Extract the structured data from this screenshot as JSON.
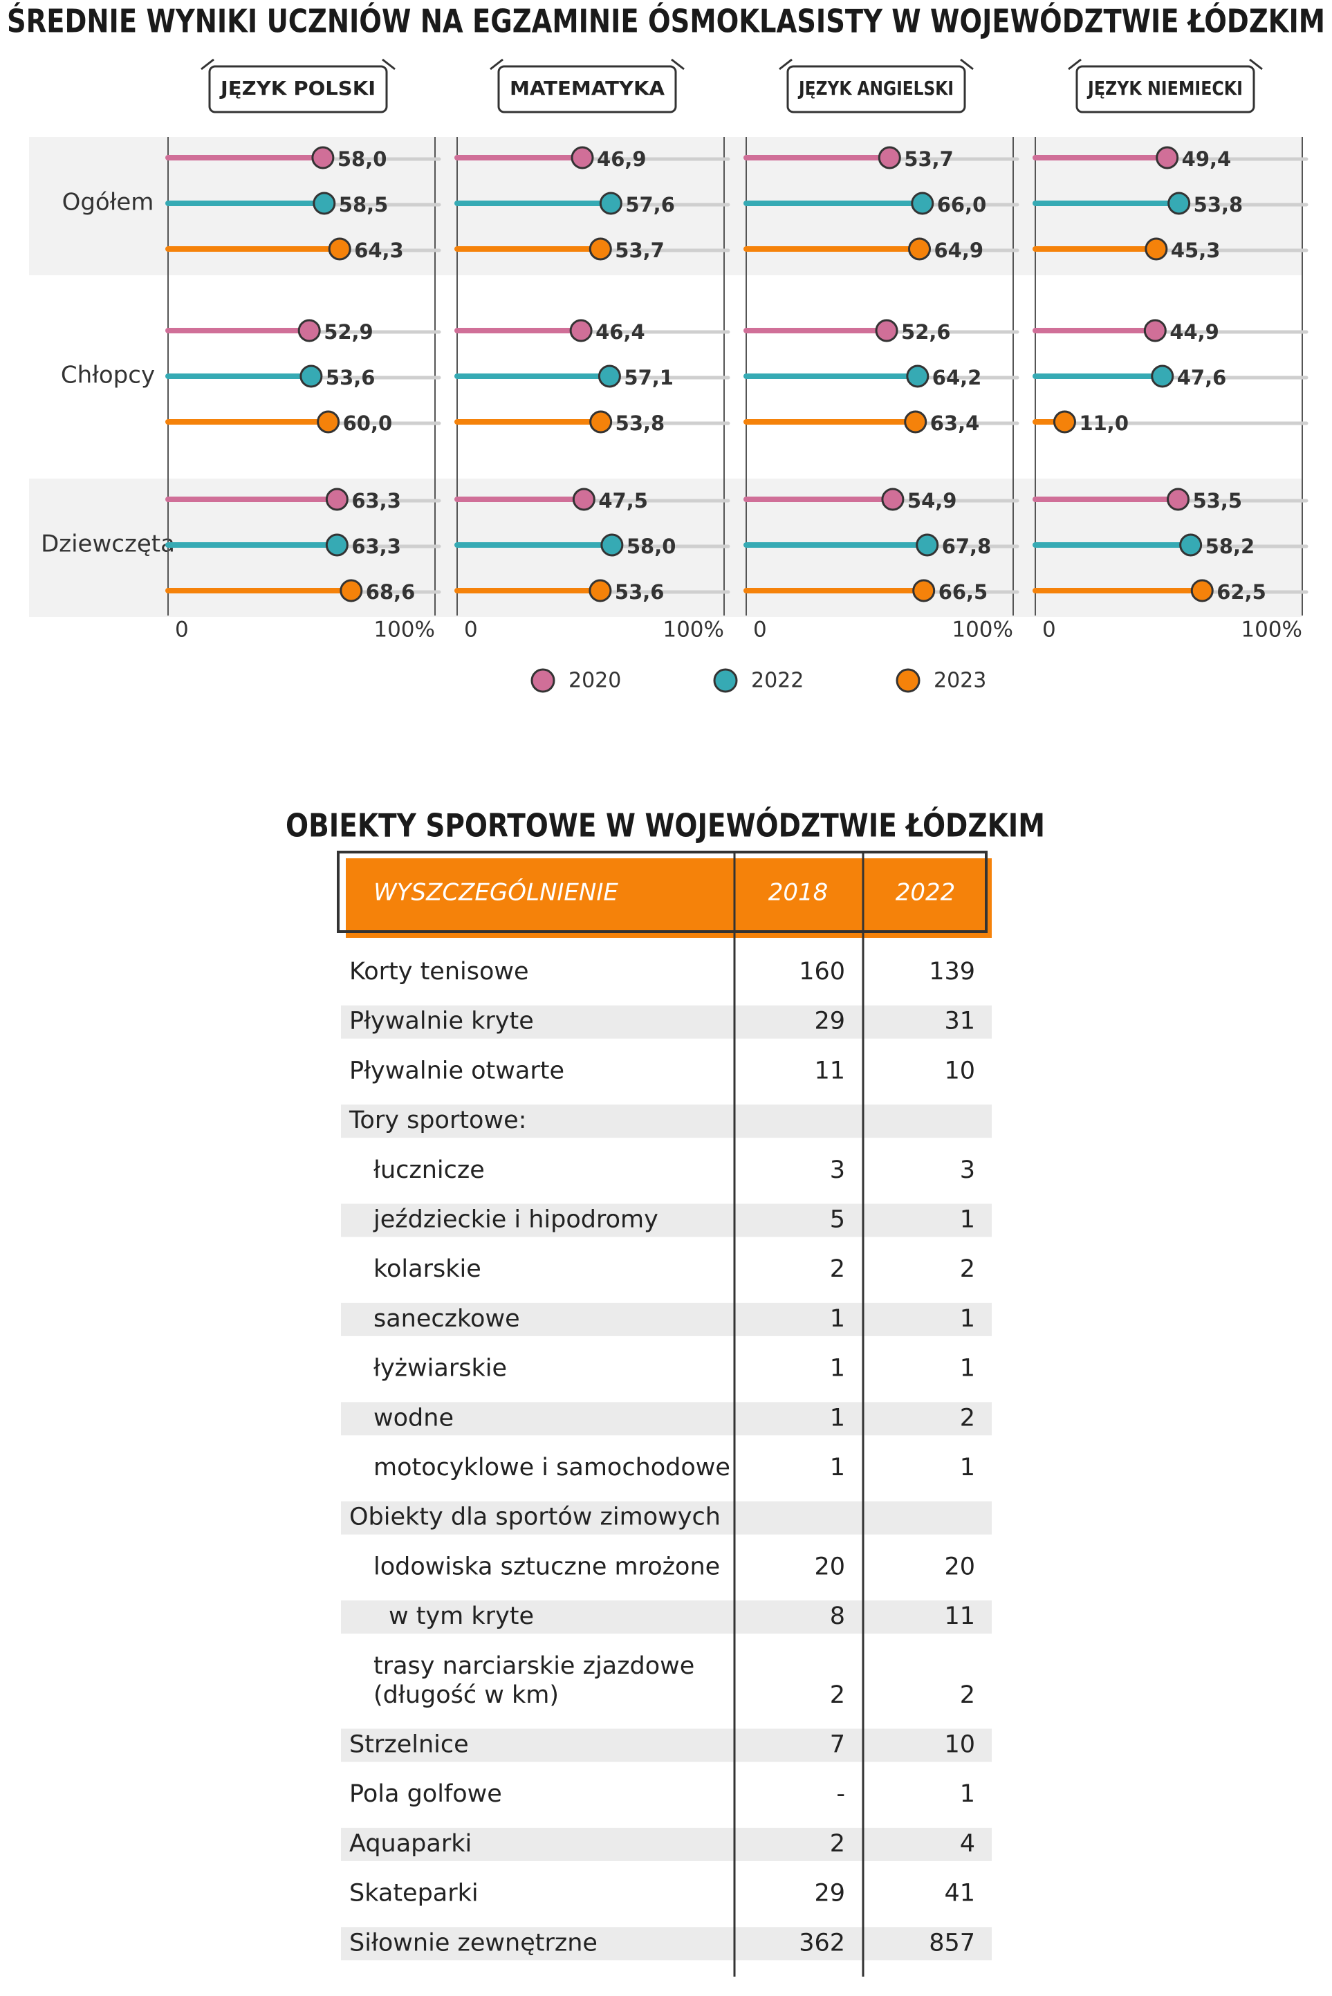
{
  "chart_data": {
    "type": "dot",
    "title": "ŚREDNIE WYNIKI UCZNIÓW NA EGZAMINIE ÓSMOKLASISTY W WOJEWÓDZTWIE ŁÓDZKIM",
    "categories": [
      "Ogółem",
      "Chłopcy",
      "Dziewczęta"
    ],
    "legend": [
      {
        "name": "2020",
        "color": "#d06f98"
      },
      {
        "name": "2022",
        "color": "#36aab4"
      },
      {
        "name": "2023",
        "color": "#f5820a"
      }
    ],
    "xlim": [
      0,
      100
    ],
    "xticks": [
      0,
      {
        "value": 100,
        "label": "100%"
      }
    ],
    "panels": [
      {
        "title": "JĘZYK POLSKI",
        "series": [
          {
            "values": [
              58.0,
              52.9,
              63.3
            ],
            "value_labels": [
              "58,0",
              "52,9",
              "63,3"
            ]
          },
          {
            "values": [
              58.5,
              53.6,
              63.3
            ],
            "value_labels": [
              "58,5",
              "53,6",
              "63,3"
            ]
          },
          {
            "values": [
              64.3,
              60.0,
              68.6
            ],
            "value_labels": [
              "64,3",
              "60,0",
              "68,6"
            ]
          }
        ]
      },
      {
        "title": "MATEMATYKA",
        "series": [
          {
            "values": [
              46.9,
              46.4,
              47.5
            ],
            "value_labels": [
              "46,9",
              "46,4",
              "47,5"
            ]
          },
          {
            "values": [
              57.6,
              57.1,
              58.0
            ],
            "value_labels": [
              "57,6",
              "57,1",
              "58,0"
            ]
          },
          {
            "values": [
              53.7,
              53.8,
              53.6
            ],
            "value_labels": [
              "53,7",
              "53,8",
              "53,6"
            ]
          }
        ]
      },
      {
        "title": "JĘZYK ANGIELSKI",
        "series": [
          {
            "values": [
              53.7,
              52.6,
              54.9
            ],
            "value_labels": [
              "53,7",
              "52,6",
              "54,9"
            ]
          },
          {
            "values": [
              66.0,
              64.2,
              67.8
            ],
            "value_labels": [
              "66,0",
              "64,2",
              "67,8"
            ]
          },
          {
            "values": [
              64.9,
              63.4,
              66.5
            ],
            "value_labels": [
              "64,9",
              "63,4",
              "66,5"
            ]
          }
        ]
      },
      {
        "title": "JĘZYK NIEMIECKI",
        "series": [
          {
            "values": [
              49.4,
              44.9,
              53.5
            ],
            "value_labels": [
              "49,4",
              "44,9",
              "53,5"
            ]
          },
          {
            "values": [
              53.8,
              47.6,
              58.2
            ],
            "value_labels": [
              "53,8",
              "47,6",
              "58,2"
            ]
          },
          {
            "values": [
              45.3,
              11.0,
              62.5
            ],
            "value_labels": [
              "45,3",
              "11,0",
              "62,5"
            ]
          }
        ]
      }
    ]
  },
  "table": {
    "title": "OBIEKTY SPORTOWE W WOJEWÓDZTWIE ŁÓDZKIM",
    "header": [
      "WYSZCZEGÓLNIENIE",
      "2018",
      "2022"
    ],
    "rows": [
      {
        "label": "Korty tenisowe",
        "level": 0,
        "values": [
          160,
          139
        ]
      },
      {
        "label": "Pływalnie kryte",
        "level": 0,
        "values": [
          29,
          31
        ]
      },
      {
        "label": "Pływalnie otwarte",
        "level": 0,
        "values": [
          11,
          10
        ]
      },
      {
        "label": "Tory sportowe:",
        "level": 0
      },
      {
        "label": "łucznicze",
        "level": 1,
        "values": [
          3,
          3
        ]
      },
      {
        "label": "jeździeckie i hipodromy",
        "level": 1,
        "values": [
          5,
          1
        ]
      },
      {
        "label": "kolarskie",
        "level": 1,
        "values": [
          2,
          2
        ]
      },
      {
        "label": "saneczkowe",
        "level": 1,
        "values": [
          1,
          1
        ]
      },
      {
        "label": "łyżwiarskie",
        "level": 1,
        "values": [
          1,
          1
        ]
      },
      {
        "label": "wodne",
        "level": 1,
        "values": [
          1,
          2
        ]
      },
      {
        "label": "motocyklowe i samochodowe",
        "level": 1,
        "values": [
          1,
          1
        ]
      },
      {
        "label": "Obiekty dla sportów zimowych",
        "level": 0
      },
      {
        "label": "lodowiska sztuczne mrożone",
        "level": 1,
        "values": [
          20,
          20
        ]
      },
      {
        "label": "w tym kryte",
        "level": 2,
        "values": [
          8,
          11
        ]
      },
      {
        "label": "trasy narciarskie zjazdowe\n(długość w km)",
        "level": 1,
        "values": [
          2,
          2
        ]
      },
      {
        "label": "Strzelnice",
        "level": 0,
        "values": [
          7,
          10
        ]
      },
      {
        "label": "Pola golfowe",
        "level": 0,
        "values": [
          "-",
          1
        ]
      },
      {
        "label": "Aquaparki",
        "level": 0,
        "values": [
          2,
          4
        ]
      },
      {
        "label": "Skateparki",
        "level": 0,
        "values": [
          29,
          41
        ]
      },
      {
        "label": "Siłownie zewnętrzne",
        "level": 0,
        "values": [
          362,
          857
        ]
      }
    ]
  }
}
